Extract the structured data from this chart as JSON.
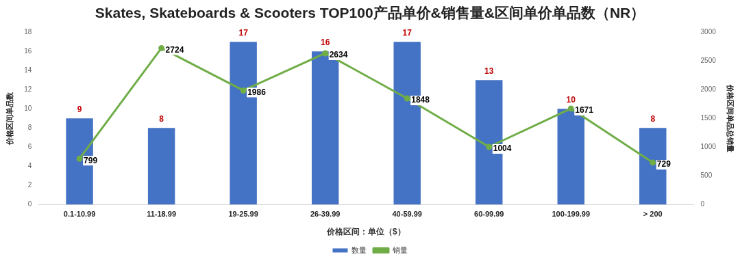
{
  "chart_data": {
    "type": "bar",
    "title": "Skates, Skateboards & Scooters TOP100产品单价&销售量&区间单价单品数（NR）",
    "xlabel": "价格区间：单位（$）",
    "ylabel": "价格区间单品数",
    "y2label": "价格区间单品总销量",
    "categories": [
      "0.1-10.99",
      "11-18.99",
      "19-25.99",
      "26-39.99",
      "40-59.99",
      "60-99.99",
      "100-199.99",
      "> 200"
    ],
    "series": [
      {
        "name": "数量",
        "color": "#4472c4",
        "values": [
          9,
          8,
          17,
          16,
          17,
          13,
          10,
          8
        ]
      },
      {
        "name": "销量",
        "type": "line",
        "axis": "y2",
        "color": "#70ad47",
        "values": [
          799,
          2724,
          1986,
          2634,
          1848,
          1004,
          1671,
          729
        ]
      }
    ],
    "ylim": [
      0,
      18
    ],
    "yticks": [
      0,
      2,
      4,
      6,
      8,
      10,
      12,
      14,
      16,
      18
    ],
    "y2lim": [
      0,
      3000
    ],
    "y2ticks": [
      0,
      500,
      1000,
      1500,
      2000,
      2500,
      3000
    ],
    "data_labels": true,
    "grid": false,
    "legend": "bottom",
    "marker": "circle",
    "line_style": "solid"
  }
}
